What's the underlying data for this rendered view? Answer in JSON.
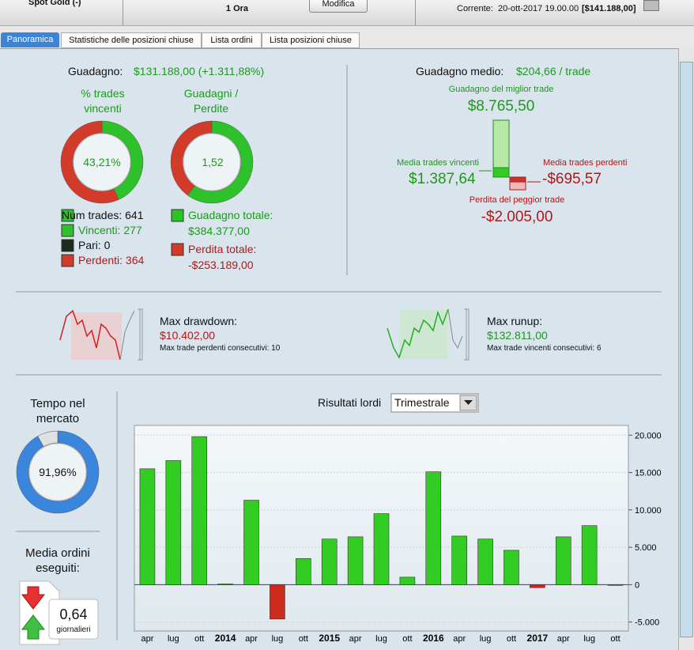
{
  "header": {
    "instrument": "Spot Gold (-)",
    "timeframe": "1 Ora",
    "button": "Modifica",
    "current_label": "Corrente:",
    "current_value": "20-ott-2017 19.00.00",
    "current_equity": "[$141.188,00]"
  },
  "tabs": [
    "Panoramica",
    "Statistiche delle posizioni chiuse",
    "Lista ordini",
    "Lista posizioni chiuse"
  ],
  "profit": {
    "label": "Guadagno:",
    "value": "$131.188,00 (+1.311,88%)"
  },
  "win_rate": {
    "title": "% trades vincenti",
    "value": "43,21%"
  },
  "profit_factor": {
    "title": "Guadagni / Perdite",
    "value": "1,52"
  },
  "trades": {
    "total": "Num trades: 641",
    "winners": "Vincenti: 277",
    "even": "Pari: 0",
    "losers": "Perdenti: 364"
  },
  "totals": {
    "gain_label": "Guadagno totale:",
    "gain_value": "$384.377,00",
    "loss_label": "Perdita totale:",
    "loss_value": "-$253.189,00"
  },
  "average": {
    "label": "Guadagno medio:",
    "value": "$204,66 / trade",
    "best_label": "Guadagno del miglior trade",
    "best_value": "$8.765,50",
    "avg_win_label": "Media trades vincenti",
    "avg_win_value": "$1.387,64",
    "avg_loss_label": "Media trades perdenti",
    "avg_loss_value": "-$695,57",
    "worst_label": "Perdita del peggior trade",
    "worst_value": "-$2.005,00"
  },
  "drawdown": {
    "label": "Max drawdown:",
    "value": "$10.402,00",
    "consecutive": "Max trade perdenti consecutivi:  10"
  },
  "runup": {
    "label": "Max runup:",
    "value": "$132.811,00",
    "consecutive": "Max trade vincenti consecutivi: 6"
  },
  "market_time": {
    "title": "Tempo nel mercato",
    "value": "91,96%"
  },
  "orders": {
    "title": "Media ordini eseguiti:",
    "value": "0,64",
    "unit": "giornalieri"
  },
  "chart_data": {
    "type": "bar",
    "title": "Risultati lordi",
    "period": "Trimestrale",
    "categories": [
      "apr",
      "lug",
      "ott",
      "2014",
      "apr",
      "lug",
      "ott",
      "2015",
      "apr",
      "lug",
      "ott",
      "2016",
      "apr",
      "lug",
      "ott",
      "2017",
      "apr",
      "lug",
      "ott"
    ],
    "values": [
      15500,
      16600,
      19800,
      100,
      11300,
      -4600,
      3500,
      6100,
      6400,
      9500,
      1000,
      15100,
      6500,
      6100,
      4600,
      -400,
      6400,
      7900,
      -100
    ],
    "positive_color": "#33cc22",
    "negative_color": "#cc2a1a",
    "ylim": [
      -6200,
      21300
    ],
    "yticks": [
      {
        "value": -5000,
        "label": "-5.000"
      },
      0,
      {
        "value": 5000,
        "label": "5.000"
      },
      {
        "value": 10000,
        "label": "10.000"
      },
      {
        "value": 15000,
        "label": "15.000"
      },
      {
        "value": 20000,
        "label": "20.000"
      }
    ],
    "grid": true
  }
}
